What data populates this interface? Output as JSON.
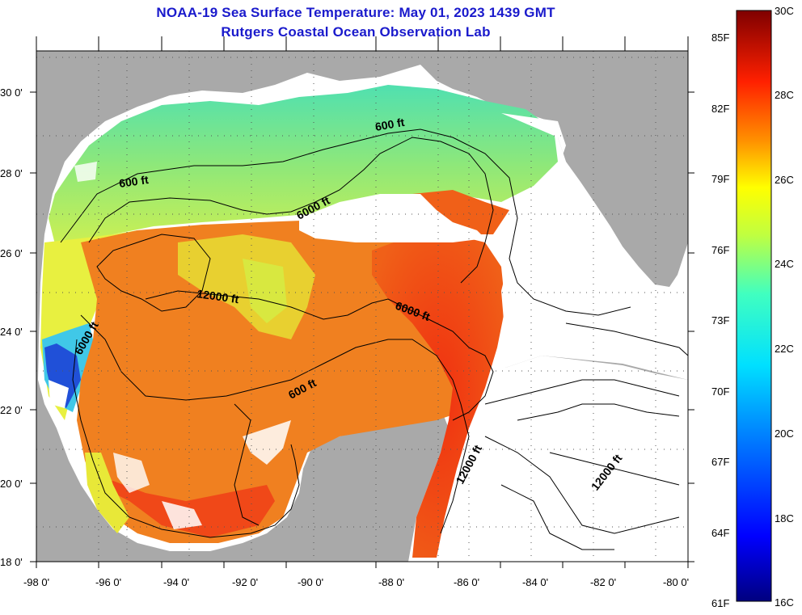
{
  "title": {
    "line1": "NOAA-19 Sea Surface Temperature:  May 01, 2023 1439 GMT",
    "line2": "Rutgers Coastal Ocean Observation Lab"
  },
  "map": {
    "lat_labels": [
      "18 0'",
      "20 0'",
      "22 0'",
      "24 0'",
      "26 0'",
      "28 0'",
      "30 0'"
    ],
    "lon_labels": [
      "-98 0'",
      "-96 0'",
      "-94 0'",
      "-92 0'",
      "-90 0'",
      "-88 0'",
      "-86 0'",
      "-84 0'",
      "-82 0'",
      "-80 0'"
    ],
    "contour_labels": [
      "600 ft",
      "600 ft",
      "6000 ft",
      "6000 ft",
      "6000 ft",
      "12000 ft",
      "12000 ft",
      "12000 ft"
    ],
    "colors": {
      "land": "#a9a9a9",
      "cloud": "#ffffff",
      "grid": "#444444"
    }
  },
  "colorbar": {
    "fahrenheit_labels": [
      "85F",
      "82F",
      "79F",
      "76F",
      "73F",
      "70F",
      "67F",
      "64F",
      "61F"
    ],
    "celsius_labels": [
      "30C",
      "28C",
      "26C",
      "24C",
      "22C",
      "20C",
      "18C",
      "16C"
    ],
    "range_c": [
      16,
      30
    ]
  }
}
